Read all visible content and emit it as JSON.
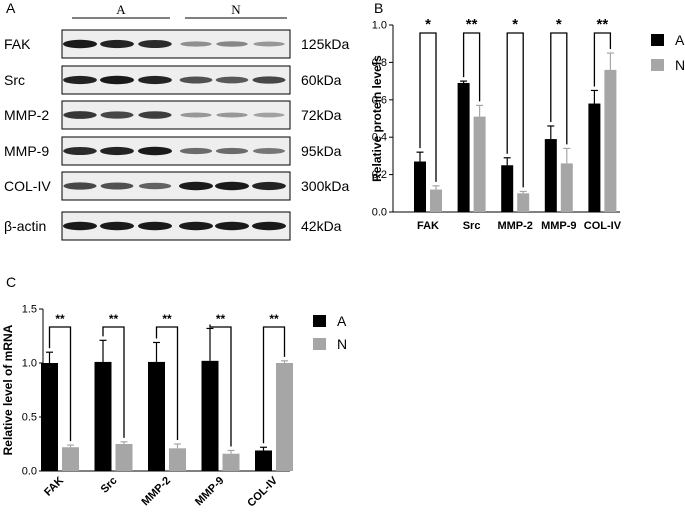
{
  "colors": {
    "A": "#000000",
    "N": "#a6a6a6",
    "blot_bg": "#eeeeee",
    "band": "#1a1a1a"
  },
  "panel_labels": {
    "a": "A",
    "b": "B",
    "c": "C"
  },
  "blot": {
    "group_labels": [
      "A",
      "N"
    ],
    "rows": [
      {
        "protein": "FAK",
        "size": "125kDa",
        "intensity": [
          1.0,
          0.95,
          0.9,
          0.35,
          0.4,
          0.3
        ]
      },
      {
        "protein": "Src",
        "size": "60kDa",
        "intensity": [
          0.95,
          1.0,
          0.95,
          0.7,
          0.65,
          0.75
        ]
      },
      {
        "protein": "MMP-2",
        "size": "72kDa",
        "intensity": [
          0.85,
          0.75,
          0.8,
          0.3,
          0.3,
          0.25
        ]
      },
      {
        "protein": "MMP-9",
        "size": "95kDa",
        "intensity": [
          0.9,
          0.95,
          1.0,
          0.55,
          0.55,
          0.5
        ]
      },
      {
        "protein": "COL-IV",
        "size": "300kDa",
        "intensity": [
          0.75,
          0.7,
          0.6,
          1.0,
          1.0,
          0.95
        ]
      },
      {
        "protein": "β-actin",
        "size": "42kDa",
        "intensity": [
          1.0,
          1.0,
          1.0,
          1.0,
          1.0,
          1.0
        ]
      }
    ]
  },
  "chart_data": [
    {
      "type": "bar",
      "title": "",
      "xlabel": "",
      "ylabel": "Relative protein levels",
      "ylim": [
        0,
        1.0
      ],
      "yticks": [
        "0.0",
        "0.2",
        "0.4",
        "0.6",
        "0.8",
        "1.0"
      ],
      "categories": [
        "FAK",
        "Src",
        "MMP-2",
        "MMP-9",
        "COL-IV"
      ],
      "series": [
        {
          "name": "A",
          "values": [
            0.27,
            0.69,
            0.25,
            0.39,
            0.58
          ],
          "errors": [
            0.05,
            0.01,
            0.04,
            0.07,
            0.07
          ]
        },
        {
          "name": "N",
          "values": [
            0.12,
            0.51,
            0.1,
            0.26,
            0.76
          ],
          "errors": [
            0.02,
            0.06,
            0.01,
            0.08,
            0.09
          ]
        }
      ],
      "significance": [
        "*",
        "**",
        "*",
        "*",
        "**"
      ],
      "legend": "right",
      "grid": false
    },
    {
      "type": "bar",
      "title": "",
      "xlabel": "",
      "ylabel": "Relative level of mRNA",
      "ylim": [
        0,
        1.5
      ],
      "yticks": [
        "0.0",
        "0.5",
        "1.0",
        "1.5"
      ],
      "categories": [
        "FAK",
        "Src",
        "MMP-2",
        "MMP-9",
        "COL-IV"
      ],
      "series": [
        {
          "name": "A",
          "values": [
            1.0,
            1.01,
            1.01,
            1.02,
            0.19
          ],
          "errors": [
            0.1,
            0.2,
            0.18,
            0.3,
            0.03
          ]
        },
        {
          "name": "N",
          "values": [
            0.22,
            0.25,
            0.21,
            0.16,
            1.0
          ],
          "errors": [
            0.02,
            0.02,
            0.04,
            0.03,
            0.02
          ]
        }
      ],
      "significance": [
        "**",
        "**",
        "**",
        "**",
        "**"
      ],
      "legend": "right",
      "grid": false
    }
  ]
}
